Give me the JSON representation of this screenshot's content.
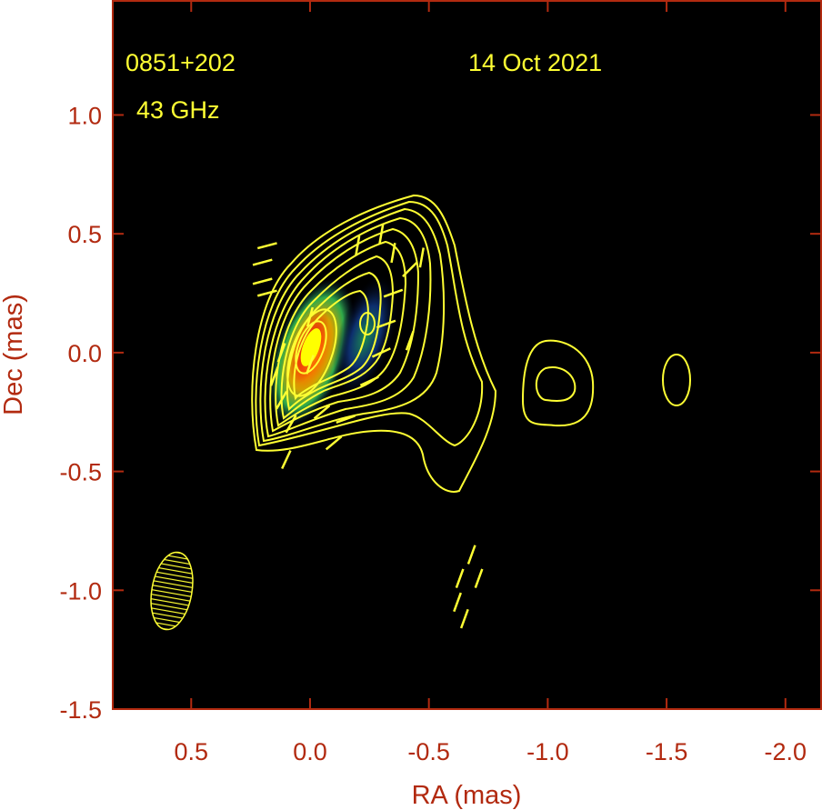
{
  "chart_data": {
    "type": "heatmap",
    "title": "",
    "xlabel": "RA (mas)",
    "ylabel": "Dec (mas)",
    "xlim": [
      0.83,
      -2.15
    ],
    "ylim": [
      -1.5,
      1.48
    ],
    "x_ticks": [
      {
        "value": 0.5,
        "label": "0.5"
      },
      {
        "value": 0.0,
        "label": "0.0"
      },
      {
        "value": -0.5,
        "label": "-0.5"
      },
      {
        "value": -1.0,
        "label": "-1.0"
      },
      {
        "value": -1.5,
        "label": "-1.5"
      },
      {
        "value": -2.0,
        "label": "-2.0"
      }
    ],
    "y_ticks": [
      {
        "value": 1.0,
        "label": "1.0"
      },
      {
        "value": 0.5,
        "label": "0.5"
      },
      {
        "value": 0.0,
        "label": "0.0"
      },
      {
        "value": -0.5,
        "label": "-0.5"
      },
      {
        "value": -1.0,
        "label": "-1.0"
      },
      {
        "value": -1.5,
        "label": "-1.5"
      }
    ],
    "annotations": {
      "source": "0851+202",
      "frequency": "43 GHz",
      "date": "14 Oct 2021"
    },
    "colors": {
      "background": "#000000",
      "axis": "#b22a10",
      "contours": "#ffff33",
      "evpa": "#ffff33"
    },
    "beam": {
      "x": 0.6,
      "y": -1.02,
      "major_mas": 0.33,
      "minor_mas": 0.13,
      "pa_deg": -10
    },
    "image_peak_region": {
      "x": 0.0,
      "y": 0.0,
      "colormap": [
        "green",
        "yellow",
        "orange",
        "red"
      ]
    },
    "polarized_knot": {
      "x": -0.23,
      "y": 0.12
    },
    "outer_contour_features": [
      {
        "x": -1.05,
        "y": -0.14,
        "description": "isolated contour pair"
      },
      {
        "x": -1.55,
        "y": -0.11,
        "description": "single isolated contour"
      }
    ],
    "evpa_sticks": [
      {
        "x": 0.18,
        "y": 0.45,
        "angle": 15
      },
      {
        "x": 0.2,
        "y": 0.38,
        "angle": 15
      },
      {
        "x": 0.2,
        "y": 0.3,
        "angle": 15
      },
      {
        "x": 0.18,
        "y": 0.25,
        "angle": 15
      },
      {
        "x": 0.12,
        "y": 0.0,
        "angle": 70
      },
      {
        "x": 0.15,
        "y": -0.1,
        "angle": 70
      },
      {
        "x": 0.12,
        "y": -0.2,
        "angle": 60
      },
      {
        "x": 0.08,
        "y": -0.3,
        "angle": 60
      },
      {
        "x": 0.1,
        "y": -0.45,
        "angle": 65
      },
      {
        "x": 0.0,
        "y": 0.15,
        "angle": 75
      },
      {
        "x": 0.0,
        "y": -0.05,
        "angle": 70
      },
      {
        "x": -0.05,
        "y": -0.25,
        "angle": 40
      },
      {
        "x": -0.1,
        "y": -0.38,
        "angle": 40
      },
      {
        "x": -0.2,
        "y": 0.45,
        "angle": 80
      },
      {
        "x": -0.3,
        "y": 0.5,
        "angle": 80
      },
      {
        "x": -0.35,
        "y": 0.42,
        "angle": 80
      },
      {
        "x": -0.42,
        "y": 0.35,
        "angle": 45
      },
      {
        "x": -0.35,
        "y": 0.25,
        "angle": 20
      },
      {
        "x": -0.32,
        "y": 0.12,
        "angle": 20
      },
      {
        "x": -0.3,
        "y": 0.0,
        "angle": 25
      },
      {
        "x": -0.25,
        "y": -0.12,
        "angle": 25
      },
      {
        "x": -0.15,
        "y": -0.28,
        "angle": 20
      },
      {
        "x": -0.42,
        "y": 0.05,
        "angle": 70
      },
      {
        "x": -0.47,
        "y": 0.4,
        "angle": 80
      },
      {
        "x": -0.68,
        "y": -0.85,
        "angle": 70
      },
      {
        "x": -0.63,
        "y": -0.95,
        "angle": 70
      },
      {
        "x": -0.71,
        "y": -0.95,
        "angle": 70
      },
      {
        "x": -0.62,
        "y": -1.05,
        "angle": 70
      },
      {
        "x": -0.65,
        "y": -1.12,
        "angle": 70
      }
    ]
  }
}
